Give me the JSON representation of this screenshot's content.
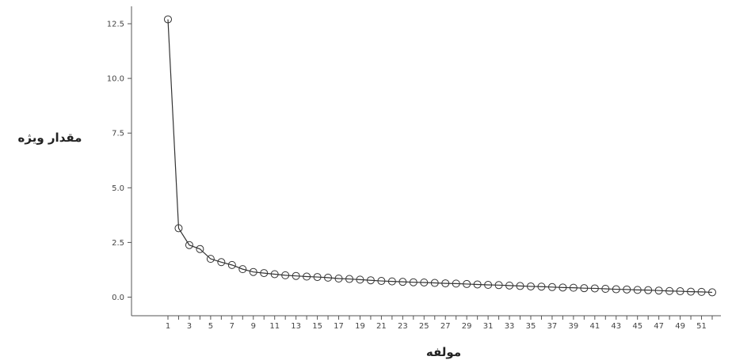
{
  "chart_data": {
    "type": "line",
    "xlabel": "مولفه",
    "ylabel": "مقدار ویژه",
    "xlim": [
      1,
      52
    ],
    "ylim": [
      0,
      13
    ],
    "y_ticks": [
      0.0,
      2.5,
      5.0,
      7.5,
      10.0,
      12.5
    ],
    "y_tick_labels": [
      "0.0",
      "2.5",
      "5.0",
      "7.5",
      "10.0",
      "12.5"
    ],
    "x_ticks": [
      1,
      2,
      3,
      4,
      5,
      6,
      7,
      8,
      9,
      10,
      11,
      12,
      13,
      14,
      15,
      16,
      17,
      18,
      19,
      20,
      21,
      22,
      23,
      24,
      25,
      26,
      27,
      28,
      29,
      30,
      31,
      32,
      33,
      34,
      35,
      36,
      37,
      38,
      39,
      40,
      41,
      42,
      43,
      44,
      45,
      46,
      47,
      48,
      49,
      50,
      51,
      52
    ],
    "x_tick_labels": [
      "1",
      "3",
      "5",
      "7",
      "9",
      "11",
      "13",
      "15",
      "17",
      "19",
      "21",
      "23",
      "25",
      "27",
      "29",
      "31",
      "33",
      "35",
      "37",
      "39",
      "41",
      "43",
      "45",
      "47",
      "49",
      "51"
    ],
    "x_tick_label_values": [
      1,
      3,
      5,
      7,
      9,
      11,
      13,
      15,
      17,
      19,
      21,
      23,
      25,
      27,
      29,
      31,
      33,
      35,
      37,
      39,
      41,
      43,
      45,
      47,
      49,
      51
    ],
    "grid": false,
    "series": [
      {
        "x": [
          1,
          2,
          3,
          4,
          5,
          6,
          7,
          8,
          9,
          10,
          11,
          12,
          13,
          14,
          15,
          16,
          17,
          18,
          19,
          20,
          21,
          22,
          23,
          24,
          25,
          26,
          27,
          28,
          29,
          30,
          31,
          32,
          33,
          34,
          35,
          36,
          37,
          38,
          39,
          40,
          41,
          42,
          43,
          44,
          45,
          46,
          47,
          48,
          49,
          50,
          51,
          52
        ],
        "values": [
          12.7,
          3.15,
          2.38,
          2.2,
          1.75,
          1.6,
          1.47,
          1.28,
          1.15,
          1.1,
          1.05,
          1.0,
          0.97,
          0.94,
          0.92,
          0.89,
          0.85,
          0.83,
          0.8,
          0.77,
          0.74,
          0.72,
          0.7,
          0.68,
          0.67,
          0.65,
          0.63,
          0.62,
          0.6,
          0.58,
          0.56,
          0.55,
          0.53,
          0.51,
          0.49,
          0.48,
          0.46,
          0.44,
          0.43,
          0.41,
          0.4,
          0.38,
          0.36,
          0.35,
          0.33,
          0.32,
          0.3,
          0.28,
          0.27,
          0.25,
          0.24,
          0.22
        ]
      }
    ],
    "line_color": "#333333",
    "marker_color": "#333333"
  }
}
